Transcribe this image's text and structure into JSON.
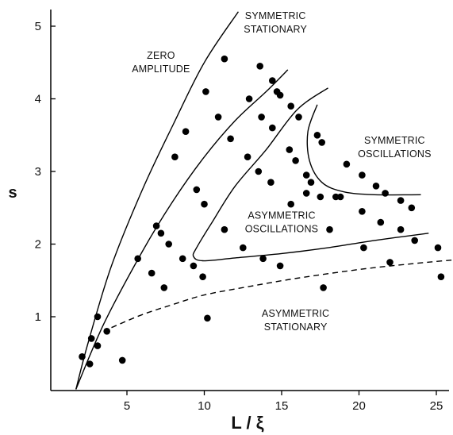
{
  "chart_data": {
    "type": "scatter",
    "title": "",
    "xlabel": "L / ξ",
    "ylabel": "s",
    "xlim": [
      0,
      26
    ],
    "ylim": [
      0,
      5.4
    ],
    "grid": false,
    "xticks": [
      5,
      10,
      15,
      20,
      25
    ],
    "yticks": [
      1,
      2,
      3,
      4,
      5
    ],
    "points": [
      {
        "x": 2.1,
        "y": 0.45
      },
      {
        "x": 2.6,
        "y": 0.35
      },
      {
        "x": 2.7,
        "y": 0.7
      },
      {
        "x": 3.1,
        "y": 1.0
      },
      {
        "x": 3.1,
        "y": 0.6
      },
      {
        "x": 3.7,
        "y": 0.8
      },
      {
        "x": 4.7,
        "y": 0.4
      },
      {
        "x": 5.7,
        "y": 1.8
      },
      {
        "x": 6.6,
        "y": 1.6
      },
      {
        "x": 6.9,
        "y": 2.25
      },
      {
        "x": 7.2,
        "y": 2.15
      },
      {
        "x": 7.4,
        "y": 1.4
      },
      {
        "x": 7.7,
        "y": 2.0
      },
      {
        "x": 8.1,
        "y": 3.2
      },
      {
        "x": 8.6,
        "y": 1.8
      },
      {
        "x": 8.8,
        "y": 3.55
      },
      {
        "x": 9.3,
        "y": 1.7
      },
      {
        "x": 9.5,
        "y": 2.75
      },
      {
        "x": 9.9,
        "y": 1.55
      },
      {
        "x": 10.0,
        "y": 2.55
      },
      {
        "x": 10.1,
        "y": 4.1
      },
      {
        "x": 10.2,
        "y": 0.98
      },
      {
        "x": 10.9,
        "y": 3.75
      },
      {
        "x": 11.3,
        "y": 2.2
      },
      {
        "x": 11.3,
        "y": 4.55
      },
      {
        "x": 11.7,
        "y": 3.45
      },
      {
        "x": 12.5,
        "y": 1.95
      },
      {
        "x": 12.8,
        "y": 3.2
      },
      {
        "x": 12.9,
        "y": 4.0
      },
      {
        "x": 13.5,
        "y": 3.0
      },
      {
        "x": 13.6,
        "y": 4.45
      },
      {
        "x": 13.7,
        "y": 3.75
      },
      {
        "x": 13.8,
        "y": 1.8
      },
      {
        "x": 14.3,
        "y": 2.85
      },
      {
        "x": 14.4,
        "y": 4.25
      },
      {
        "x": 14.4,
        "y": 3.6
      },
      {
        "x": 14.7,
        "y": 4.1
      },
      {
        "x": 14.9,
        "y": 4.05
      },
      {
        "x": 14.9,
        "y": 1.7
      },
      {
        "x": 15.5,
        "y": 3.3
      },
      {
        "x": 15.6,
        "y": 3.9
      },
      {
        "x": 15.6,
        "y": 2.55
      },
      {
        "x": 15.9,
        "y": 3.15
      },
      {
        "x": 16.1,
        "y": 3.75
      },
      {
        "x": 16.6,
        "y": 2.7
      },
      {
        "x": 16.6,
        "y": 2.95
      },
      {
        "x": 16.9,
        "y": 2.85
      },
      {
        "x": 17.3,
        "y": 3.5
      },
      {
        "x": 17.5,
        "y": 2.65
      },
      {
        "x": 17.6,
        "y": 3.4
      },
      {
        "x": 17.7,
        "y": 1.4
      },
      {
        "x": 18.1,
        "y": 2.2
      },
      {
        "x": 18.5,
        "y": 2.65
      },
      {
        "x": 18.8,
        "y": 2.65
      },
      {
        "x": 19.2,
        "y": 3.1
      },
      {
        "x": 20.2,
        "y": 2.95
      },
      {
        "x": 20.2,
        "y": 2.45
      },
      {
        "x": 20.3,
        "y": 1.95
      },
      {
        "x": 21.1,
        "y": 2.8
      },
      {
        "x": 21.4,
        "y": 2.3
      },
      {
        "x": 21.7,
        "y": 2.7
      },
      {
        "x": 22.0,
        "y": 1.75
      },
      {
        "x": 22.7,
        "y": 2.6
      },
      {
        "x": 22.7,
        "y": 2.2
      },
      {
        "x": 23.4,
        "y": 2.5
      },
      {
        "x": 23.6,
        "y": 2.05
      },
      {
        "x": 25.1,
        "y": 1.95
      },
      {
        "x": 25.3,
        "y": 1.55
      }
    ],
    "curves": [
      {
        "style": "solid",
        "points": [
          [
            1.7,
            0
          ],
          [
            2.5,
            0.65
          ],
          [
            4.0,
            1.7
          ],
          [
            6.0,
            2.75
          ],
          [
            8.0,
            3.65
          ],
          [
            10.0,
            4.5
          ],
          [
            12.2,
            5.2
          ]
        ]
      },
      {
        "style": "solid",
        "points": [
          [
            1.7,
            0
          ],
          [
            3.5,
            0.9
          ],
          [
            6.0,
            1.9
          ],
          [
            8.0,
            2.6
          ],
          [
            10.0,
            3.2
          ],
          [
            12.0,
            3.7
          ],
          [
            14.0,
            4.1
          ],
          [
            15.4,
            4.4
          ]
        ]
      },
      {
        "style": "solid",
        "points": [
          [
            18.0,
            4.15
          ],
          [
            16.0,
            3.85
          ],
          [
            14.0,
            3.3
          ],
          [
            12.0,
            2.8
          ],
          [
            10.5,
            2.3
          ],
          [
            9.5,
            1.95
          ],
          [
            9.3,
            1.83
          ],
          [
            9.9,
            1.77
          ],
          [
            12.0,
            1.81
          ],
          [
            15.0,
            1.87
          ],
          [
            18.0,
            1.95
          ],
          [
            21.0,
            2.05
          ],
          [
            24.5,
            2.15
          ]
        ]
      },
      {
        "style": "solid",
        "points": [
          [
            17.3,
            3.92
          ],
          [
            16.7,
            3.55
          ],
          [
            16.8,
            3.15
          ],
          [
            17.6,
            2.85
          ],
          [
            19.0,
            2.72
          ],
          [
            21.0,
            2.68
          ],
          [
            24.0,
            2.68
          ]
        ]
      },
      {
        "style": "dashed",
        "points": [
          [
            4.0,
            0.85
          ],
          [
            6.0,
            1.03
          ],
          [
            8.0,
            1.17
          ],
          [
            10.0,
            1.3
          ],
          [
            13.0,
            1.42
          ],
          [
            16.0,
            1.53
          ],
          [
            20.0,
            1.65
          ],
          [
            23.0,
            1.72
          ],
          [
            26.0,
            1.78
          ]
        ]
      }
    ],
    "annotations": [
      {
        "lines": [
          "ZERO",
          "AMPLITUDE"
        ],
        "x": 7.2,
        "y": 4.55,
        "align": "middle"
      },
      {
        "lines": [
          "SYMMETRIC",
          "STATIONARY"
        ],
        "x": 14.6,
        "y": 5.1,
        "align": "middle"
      },
      {
        "lines": [
          "SYMMETRIC",
          "OSCILLATIONS"
        ],
        "x": 22.3,
        "y": 3.38,
        "align": "middle"
      },
      {
        "lines": [
          "ASYMMETRIC",
          "OSCILLATIONS"
        ],
        "x": 15.0,
        "y": 2.35,
        "align": "middle"
      },
      {
        "lines": [
          "ASYMMETRIC",
          "STATIONARY"
        ],
        "x": 15.9,
        "y": 1.0,
        "align": "middle"
      }
    ]
  }
}
